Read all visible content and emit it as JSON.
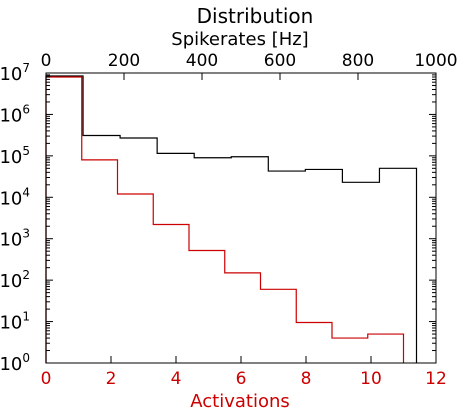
{
  "chart_data": {
    "type": "histogram",
    "title": "Distribution",
    "y_scale": "log",
    "ylim": [
      1,
      10000000
    ],
    "y_ticks": [
      {
        "base": "10",
        "exp": "0",
        "value": 1
      },
      {
        "base": "10",
        "exp": "1",
        "value": 10
      },
      {
        "base": "10",
        "exp": "2",
        "value": 100
      },
      {
        "base": "10",
        "exp": "3",
        "value": 1000
      },
      {
        "base": "10",
        "exp": "4",
        "value": 10000
      },
      {
        "base": "10",
        "exp": "5",
        "value": 100000
      },
      {
        "base": "10",
        "exp": "6",
        "value": 1000000
      },
      {
        "base": "10",
        "exp": "7",
        "value": 10000000
      }
    ],
    "top_axis": {
      "label": "Spikerates [Hz]",
      "xlim": [
        0,
        1000
      ],
      "ticks": [
        0,
        200,
        400,
        600,
        800,
        1000
      ]
    },
    "bottom_axis": {
      "label": "Activations",
      "xlim": [
        0,
        12
      ],
      "ticks": [
        0,
        2,
        4,
        6,
        8,
        10,
        12
      ]
    },
    "series": [
      {
        "axis": "top",
        "color": "#000000",
        "bin_edges": [
          0,
          95,
          190,
          285,
          380,
          475,
          570,
          665,
          760,
          855,
          950
        ],
        "counts": [
          8500000,
          310000,
          270000,
          115000,
          90000,
          95000,
          43000,
          47000,
          23000,
          50000
        ]
      },
      {
        "axis": "bottom",
        "color": "#cc0000",
        "bin_edges": [
          0,
          1.1,
          2.2,
          3.3,
          4.4,
          5.5,
          6.6,
          7.7,
          8.8,
          9.9,
          11.0
        ],
        "counts": [
          8000000,
          80000,
          12000,
          2200,
          520,
          150,
          60,
          9.5,
          4,
          5
        ]
      }
    ]
  }
}
